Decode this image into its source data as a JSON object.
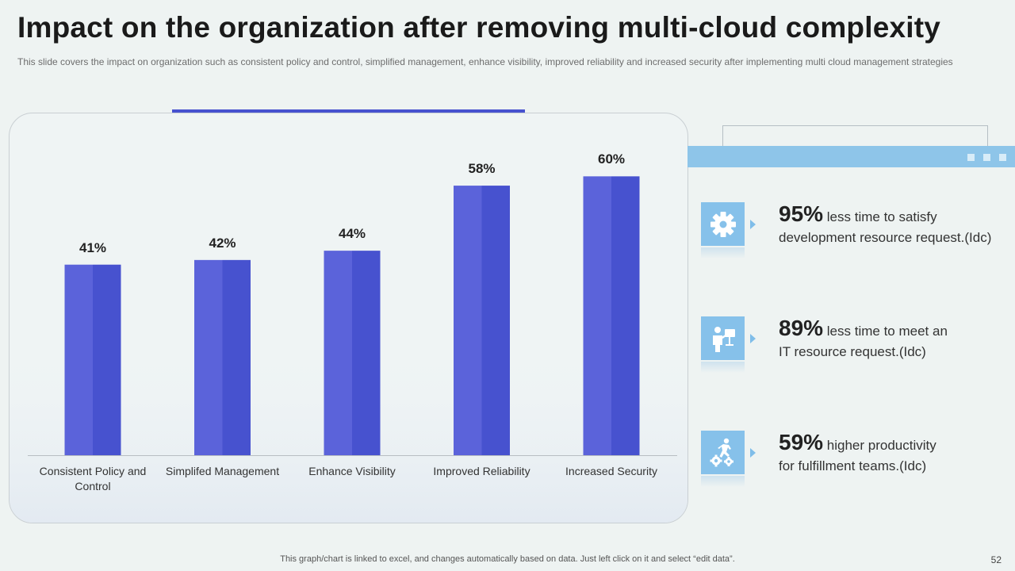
{
  "title": "Impact on the organization after removing multi-cloud complexity",
  "subtitle": "This slide covers the impact on organization such as consistent policy and control, simplified management, enhance visibility, improved reliability and increased security after implementing multi cloud management strategies",
  "chart_data": {
    "type": "bar",
    "title": "",
    "xlabel": "",
    "ylabel": "",
    "ylim": [
      0,
      65
    ],
    "grid": false,
    "categories": [
      "Consistent Policy and Control",
      "Simplifed Management",
      "Enhance Visibility",
      "Improved Reliability",
      "Increased Security"
    ],
    "values": [
      41,
      42,
      44,
      58,
      60
    ],
    "value_labels": [
      "41%",
      "42%",
      "44%",
      "58%",
      "60%"
    ],
    "colors": {
      "bar_left": "#5b63da",
      "bar_right": "#4752cf",
      "axis": "#b8bec2"
    }
  },
  "stats": [
    {
      "pct": "95%",
      "text_a": "less time to satisfy",
      "text_b": "development resource request.(Idc)",
      "icon": "gear-icon"
    },
    {
      "pct": "89%",
      "text_a": "less time to meet an",
      "text_b": "IT resource request.(Idc)",
      "icon": "team-presenter-icon"
    },
    {
      "pct": "59%",
      "text_a": "higher productivity",
      "text_b": "for fulfillment teams.(Idc)",
      "icon": "runner-gears-icon"
    }
  ],
  "colors": {
    "accent": "#4752cf",
    "icon_bg": "#86c1ea",
    "band": "#8ec5e9"
  },
  "footer": "This graph/chart is linked to excel, and changes automatically based on data. Just left click on it and select “edit data”.",
  "page_number": "52"
}
